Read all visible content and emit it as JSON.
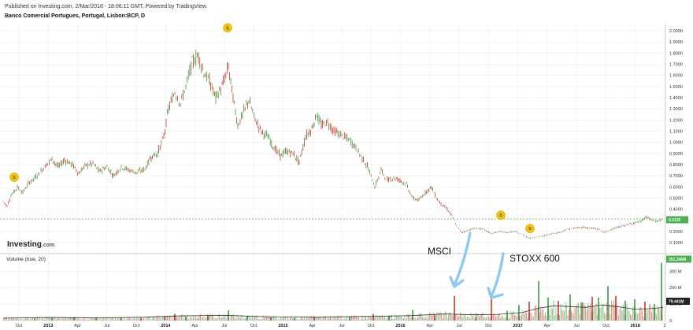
{
  "header": {
    "published": "Published on Investing.com, 2/Mar/2018 - 18:06:11 GMT, Powered by TradingView.",
    "instrument": "Banco Comercial Portugues, Portugal, Lisbon:BCP, D"
  },
  "colors": {
    "up": "#3e9a3e",
    "down": "#c0392b",
    "grid": "#ececec",
    "last_price_line": "#4caf50",
    "arrow": "#8ec9ef",
    "badge": "#f1c40f",
    "ma": "#333333"
  },
  "logo": {
    "name": "Investing",
    "suffix": ".com"
  },
  "volume_panel": {
    "label": "Volume (true, 20)"
  },
  "chart_data": [
    {
      "type": "line",
      "x_axis": [
        "Oct",
        "2013",
        "Apr",
        "Jul",
        "Oct",
        "2014",
        "Apr",
        "Jul",
        "Oct",
        "2015",
        "Apr",
        "Jul",
        "Oct",
        "2016",
        "Apr",
        "Jul",
        "Oct",
        "2017",
        "Apr",
        "Jul",
        "Oct",
        "2018",
        "2"
      ],
      "y_ticks": [
        "0.1000",
        "0.2000",
        "0.3000",
        "0.4000",
        "0.5000",
        "0.6000",
        "0.7000",
        "0.8000",
        "0.9000",
        "1.0000",
        "1.1000",
        "1.2000",
        "1.3000",
        "1.4000",
        "1.5000",
        "1.6000",
        "1.7000",
        "1.8000",
        "1.9000",
        "2.0000"
      ],
      "ylim": [
        0.03,
        2.05
      ],
      "last_price": {
        "value": 0.3125,
        "label": "0.3125"
      },
      "series": [
        {
          "values": [
            [
              0,
              0.47
            ],
            [
              5,
              0.43
            ],
            [
              10,
              0.52
            ],
            [
              18,
              0.6
            ],
            [
              25,
              0.55
            ],
            [
              32,
              0.63
            ],
            [
              40,
              0.68
            ],
            [
              48,
              0.74
            ],
            [
              55,
              0.8
            ],
            [
              62,
              0.85
            ],
            [
              70,
              0.78
            ],
            [
              78,
              0.84
            ],
            [
              88,
              0.8
            ],
            [
              96,
              0.72
            ],
            [
              104,
              0.79
            ],
            [
              114,
              0.81
            ],
            [
              122,
              0.74
            ],
            [
              132,
              0.78
            ],
            [
              140,
              0.7
            ],
            [
              150,
              0.78
            ],
            [
              160,
              0.75
            ],
            [
              170,
              0.73
            ],
            [
              180,
              0.76
            ],
            [
              188,
              0.87
            ],
            [
              196,
              0.9
            ],
            [
              204,
              1.05
            ],
            [
              210,
              1.3
            ],
            [
              218,
              1.45
            ],
            [
              225,
              1.35
            ],
            [
              232,
              1.5
            ],
            [
              240,
              1.72
            ],
            [
              248,
              1.78
            ],
            [
              255,
              1.62
            ],
            [
              262,
              1.55
            ],
            [
              270,
              1.4
            ],
            [
              278,
              1.5
            ],
            [
              286,
              1.68
            ],
            [
              292,
              1.4
            ],
            [
              298,
              1.15
            ],
            [
              304,
              1.25
            ],
            [
              312,
              1.38
            ],
            [
              320,
              1.2
            ],
            [
              328,
              1.1
            ],
            [
              336,
              1.05
            ],
            [
              344,
              0.95
            ],
            [
              352,
              0.88
            ],
            [
              360,
              0.92
            ],
            [
              368,
              0.9
            ],
            [
              376,
              0.82
            ],
            [
              384,
              1.05
            ],
            [
              392,
              1.12
            ],
            [
              398,
              1.25
            ],
            [
              404,
              1.15
            ],
            [
              412,
              1.18
            ],
            [
              420,
              1.1
            ],
            [
              430,
              1.06
            ],
            [
              440,
              1.02
            ],
            [
              448,
              0.95
            ],
            [
              456,
              0.86
            ],
            [
              464,
              0.76
            ],
            [
              472,
              0.6
            ],
            [
              480,
              0.75
            ],
            [
              488,
              0.66
            ],
            [
              496,
              0.68
            ],
            [
              504,
              0.66
            ],
            [
              512,
              0.62
            ],
            [
              520,
              0.5
            ],
            [
              528,
              0.48
            ],
            [
              536,
              0.55
            ],
            [
              544,
              0.6
            ],
            [
              550,
              0.5
            ],
            [
              556,
              0.45
            ],
            [
              564,
              0.4
            ],
            [
              570,
              0.34
            ],
            [
              576,
              0.25
            ],
            [
              582,
              0.19
            ],
            [
              590,
              0.21
            ],
            [
              600,
              0.23
            ],
            [
              610,
              0.22
            ],
            [
              620,
              0.18
            ],
            [
              630,
              0.2
            ],
            [
              640,
              0.19
            ],
            [
              650,
              0.2
            ],
            [
              660,
              0.17
            ],
            [
              668,
              0.14
            ],
            [
              676,
              0.15
            ],
            [
              686,
              0.16
            ],
            [
              696,
              0.18
            ],
            [
              706,
              0.19
            ],
            [
              716,
              0.22
            ],
            [
              726,
              0.23
            ],
            [
              736,
              0.24
            ],
            [
              746,
              0.23
            ],
            [
              756,
              0.22
            ],
            [
              764,
              0.19
            ],
            [
              772,
              0.22
            ],
            [
              782,
              0.24
            ],
            [
              792,
              0.26
            ],
            [
              802,
              0.28
            ],
            [
              810,
              0.29
            ],
            [
              816,
              0.33
            ],
            [
              822,
              0.31
            ],
            [
              830,
              0.29
            ],
            [
              838,
              0.31
            ]
          ]
        }
      ],
      "dividend_markers": [
        {
          "x": 14,
          "value": 0.63,
          "label": "S"
        },
        {
          "x": 285,
          "value": 1.97,
          "label": "S"
        },
        {
          "x": 632,
          "value": 0.29,
          "label": "S"
        },
        {
          "x": 669,
          "value": 0.17,
          "label": "S"
        }
      ]
    },
    {
      "type": "bar",
      "name": "Volume (true, 20)",
      "y_ticks": [
        "0",
        "100 M",
        "200 M",
        "300 M"
      ],
      "ylim": [
        0,
        340
      ],
      "last_volume": {
        "value": 352.246,
        "label": "352.246M"
      },
      "ma_value": {
        "value": 79.441,
        "label": "79.441M"
      },
      "bars": [
        [
          40,
          12,
          "u"
        ],
        [
          62,
          18,
          "u"
        ],
        [
          90,
          15,
          "d"
        ],
        [
          118,
          14,
          "u"
        ],
        [
          150,
          20,
          "u"
        ],
        [
          175,
          12,
          "d"
        ],
        [
          205,
          25,
          "u"
        ],
        [
          218,
          40,
          "d"
        ],
        [
          232,
          22,
          "u"
        ],
        [
          260,
          30,
          "d"
        ],
        [
          286,
          62,
          "u"
        ],
        [
          310,
          30,
          "u"
        ],
        [
          340,
          20,
          "d"
        ],
        [
          370,
          15,
          "u"
        ],
        [
          395,
          25,
          "d"
        ],
        [
          440,
          20,
          "u"
        ],
        [
          470,
          40,
          "d"
        ],
        [
          490,
          30,
          "u"
        ],
        [
          520,
          65,
          "u"
        ],
        [
          548,
          35,
          "d"
        ],
        [
          573,
          150,
          "d"
        ],
        [
          600,
          20,
          "u"
        ],
        [
          620,
          135,
          "d"
        ],
        [
          640,
          60,
          "u"
        ],
        [
          655,
          95,
          "u"
        ],
        [
          668,
          115,
          "d"
        ],
        [
          680,
          240,
          "u"
        ],
        [
          692,
          140,
          "u"
        ],
        [
          705,
          120,
          "d"
        ],
        [
          720,
          160,
          "u"
        ],
        [
          735,
          110,
          "u"
        ],
        [
          748,
          145,
          "d"
        ],
        [
          756,
          140,
          "u"
        ],
        [
          768,
          210,
          "u"
        ],
        [
          778,
          150,
          "d"
        ],
        [
          790,
          120,
          "u"
        ],
        [
          802,
          130,
          "u"
        ],
        [
          815,
          115,
          "d"
        ],
        [
          827,
          100,
          "u"
        ],
        [
          836,
          352,
          "u"
        ]
      ],
      "ma": [
        [
          0,
          15
        ],
        [
          60,
          18
        ],
        [
          120,
          16
        ],
        [
          180,
          20
        ],
        [
          220,
          28
        ],
        [
          280,
          32
        ],
        [
          340,
          22
        ],
        [
          400,
          20
        ],
        [
          460,
          25
        ],
        [
          520,
          30
        ],
        [
          560,
          40
        ],
        [
          600,
          35
        ],
        [
          630,
          38
        ],
        [
          660,
          50
        ],
        [
          680,
          75
        ],
        [
          700,
          90
        ],
        [
          720,
          85
        ],
        [
          740,
          80
        ],
        [
          760,
          95
        ],
        [
          780,
          85
        ],
        [
          800,
          70
        ],
        [
          820,
          72
        ],
        [
          838,
          79
        ]
      ]
    }
  ],
  "annotations": [
    {
      "text": "MSCI",
      "target": "2016 Jun volume spike"
    },
    {
      "text": "STOXX 600",
      "target": "2016 Oct volume spike"
    }
  ]
}
